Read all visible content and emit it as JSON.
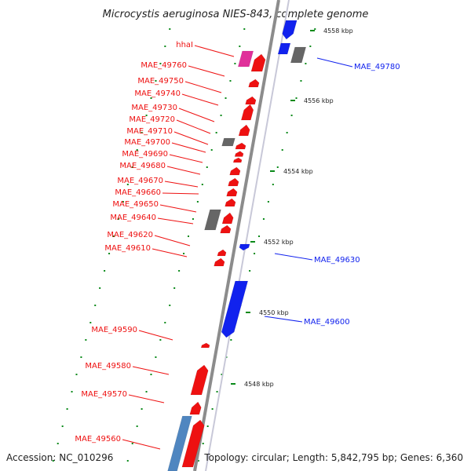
{
  "title": "Microcystis aeruginosa NIES-843, complete genome",
  "accession": "Accession: NC_010296",
  "summary": "Topology: circular; Length: 5,842,795 bp; Genes: 6,360",
  "colors": {
    "forward_gene": "#ee1111",
    "reverse_gene": "#1122ee",
    "pseudo_gene": "#666666",
    "special_gene": "#e0309a",
    "light_blue": "#4f86c0",
    "dots": "#0a8a1a",
    "backbone": "#8c8c8c"
  },
  "ticks": [
    "4558 kbp",
    "4556 kbp",
    "4554 kbp",
    "4552 kbp",
    "4550 kbp",
    "4548 kbp"
  ],
  "left_labels": [
    "hhaI",
    "MAE_49760",
    "MAE_49750",
    "MAE_49740",
    "MAE_49730",
    "MAE_49720",
    "MAE_49710",
    "MAE_49700",
    "MAE_49690",
    "MAE_49680",
    "MAE_49670",
    "MAE_49660",
    "MAE_49650",
    "MAE_49640",
    "MAE_49620",
    "MAE_49610",
    "MAE_49590",
    "MAE_49580",
    "MAE_49570",
    "MAE_49560"
  ],
  "right_labels": [
    "MAE_49780",
    "MAE_49630",
    "MAE_49600"
  ]
}
